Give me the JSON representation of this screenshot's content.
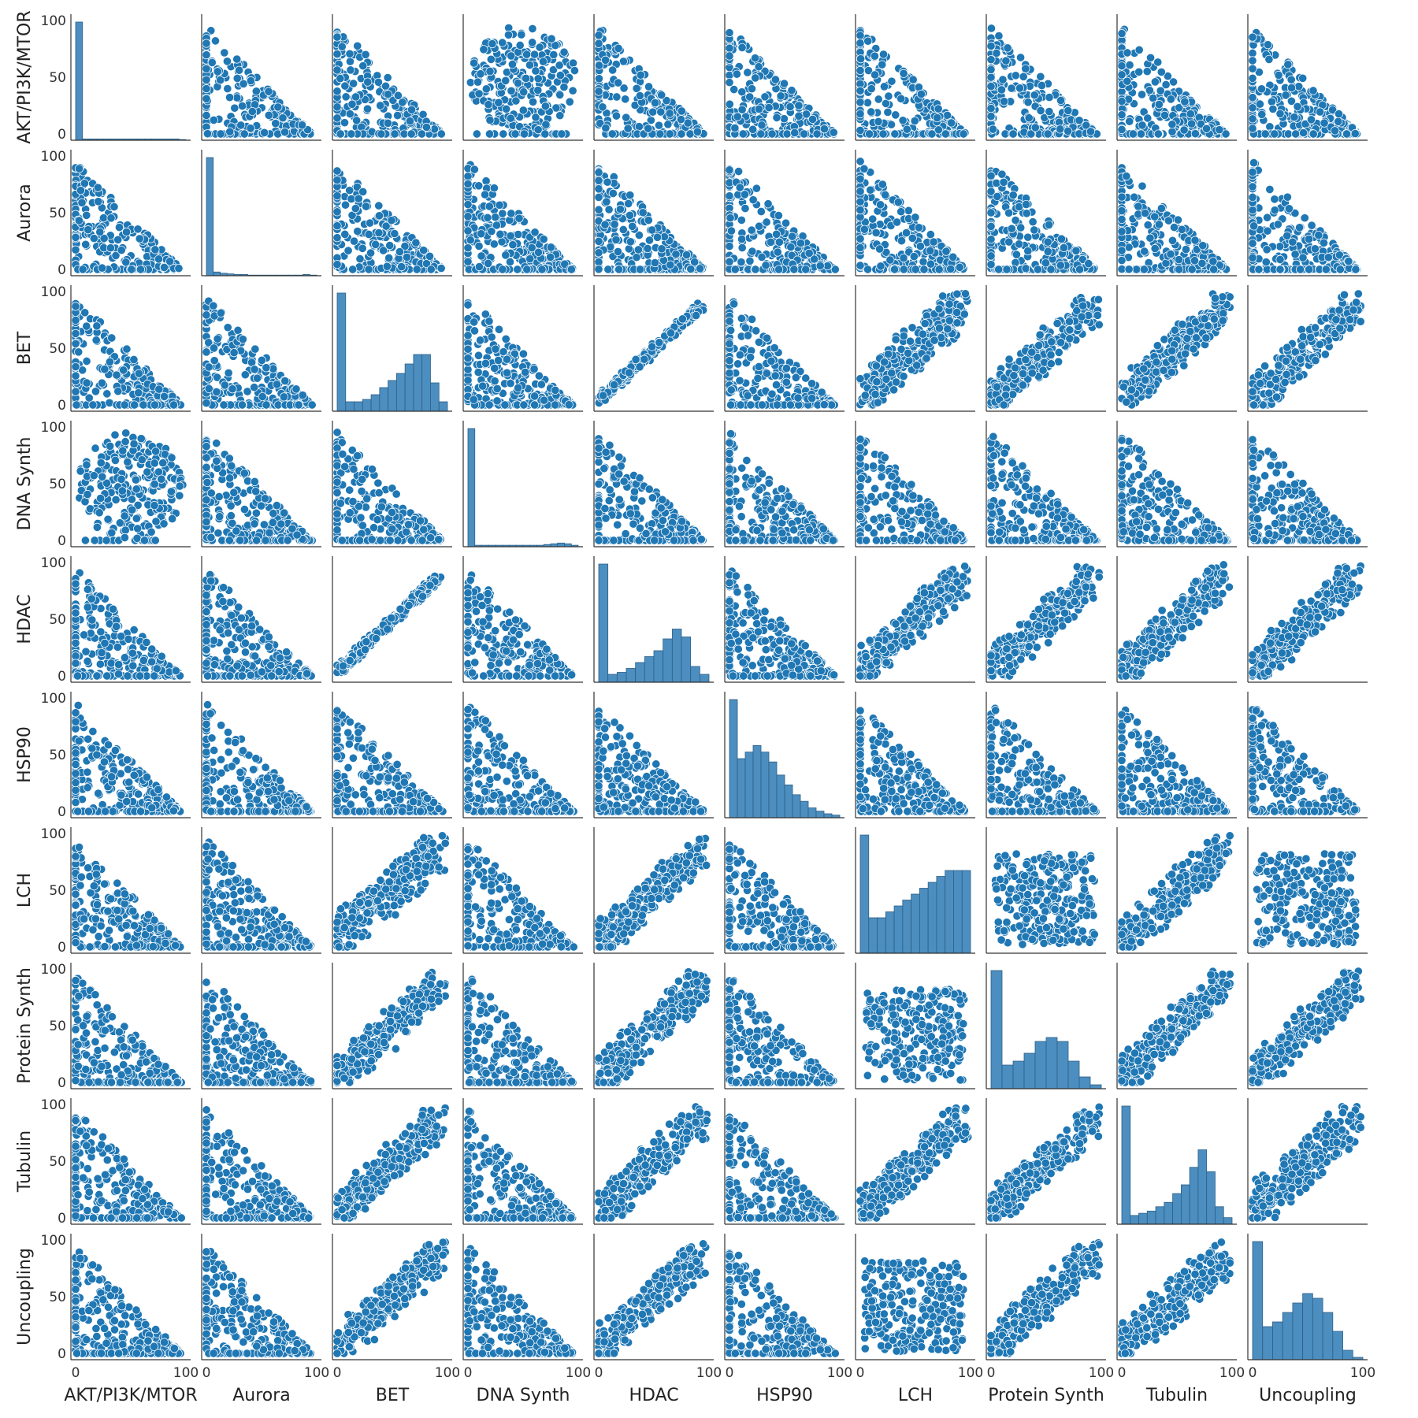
{
  "chart_data": {
    "type": "scatter",
    "subtype": "pairplot",
    "title": "",
    "variables": [
      "AKT/PI3K/MTOR",
      "Aurora",
      "BET",
      "DNA Synth",
      "HDAC",
      "HSP90",
      "LCH",
      "Protein Synth",
      "Tubulin",
      "Uncoupling"
    ],
    "axis_range": [
      0,
      100
    ],
    "ticks": [
      0,
      50,
      100
    ],
    "x_tick_labels": [
      "0",
      "100"
    ],
    "y_tick_labels": [
      "0",
      "50",
      "100"
    ],
    "grid": false,
    "legend": "none",
    "diagonal": "histogram",
    "off_diagonal": "scatter",
    "colors": {
      "marker": "#1f77b4",
      "marker_edge": "#ffffff",
      "hist": "#4c8ebf",
      "hist_edge": "#2c5f87",
      "axis": "#333333"
    },
    "histograms": {
      "AKT/PI3K/MTOR": [
        0.92,
        0.01,
        0.01,
        0.01,
        0.01,
        0.01,
        0.01,
        0.01,
        0.01,
        0.01,
        0.01,
        0.01,
        0.01,
        0.01,
        0.01,
        0.005
      ],
      "Aurora": [
        0.95,
        0.03,
        0.02,
        0.015,
        0.01,
        0.01,
        0.005,
        0.005,
        0.005,
        0.005,
        0.005,
        0.005,
        0.005,
        0.005,
        0.01,
        0.005
      ],
      "BET": [
        0.25,
        0.02,
        0.02,
        0.025,
        0.035,
        0.05,
        0.065,
        0.08,
        0.1,
        0.12,
        0.12,
        0.06,
        0.02
      ],
      "DNA Synth": [
        0.8,
        0.01,
        0.01,
        0.01,
        0.01,
        0.01,
        0.01,
        0.01,
        0.01,
        0.01,
        0.01,
        0.015,
        0.02,
        0.025,
        0.02,
        0.01
      ],
      "HDAC": [
        0.3,
        0.02,
        0.025,
        0.035,
        0.05,
        0.065,
        0.08,
        0.11,
        0.135,
        0.115,
        0.04,
        0.02
      ],
      "HSP90": [
        0.18,
        0.09,
        0.1,
        0.11,
        0.1,
        0.085,
        0.065,
        0.05,
        0.035,
        0.025,
        0.015,
        0.01,
        0.006,
        0.004
      ],
      "LCH": [
        0.2,
        0.06,
        0.06,
        0.07,
        0.08,
        0.09,
        0.1,
        0.11,
        0.12,
        0.13,
        0.14,
        0.14,
        0.14
      ],
      "Protein Synth": [
        0.3,
        0.06,
        0.07,
        0.09,
        0.12,
        0.13,
        0.12,
        0.07,
        0.03,
        0.01
      ],
      "Tubulin": [
        0.27,
        0.02,
        0.025,
        0.03,
        0.04,
        0.05,
        0.07,
        0.09,
        0.13,
        0.17,
        0.12,
        0.04,
        0.015
      ],
      "Uncoupling": [
        0.25,
        0.07,
        0.08,
        0.1,
        0.12,
        0.14,
        0.13,
        0.1,
        0.06,
        0.02,
        0.005
      ]
    },
    "pair_patterns": {
      "AKT/PI3K/MTOR|DNA Synth": "dense disc, values 0-95 on both axes",
      "BET|HDAC": "strong positive linear, y ≈ x",
      "BET|LCH": "positive, band from low-left to 90-90",
      "BET|Protein Synth": "positive band, y up to 75",
      "BET|Tubulin": "positive band, y ≈ x",
      "BET|Uncoupling": "positive band",
      "HDAC|LCH": "positive band",
      "HDAC|Protein Synth": "positive band",
      "HDAC|Tubulin": "positive band",
      "HDAC|Uncoupling": "positive band",
      "LCH|Protein Synth": "broad cloud",
      "LCH|Tubulin": "positive band",
      "LCH|Uncoupling": "broad cloud",
      "Protein Synth|Tubulin": "positive band",
      "Protein Synth|Uncoupling": "positive band",
      "Tubulin|Uncoupling": "broad positive cloud",
      "default": "triangular, x + y <= 100 with many zeros"
    }
  }
}
